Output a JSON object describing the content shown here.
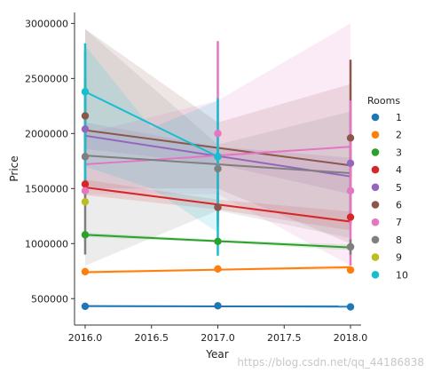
{
  "chart_data": {
    "type": "scatter",
    "subtype": "regression-point-plot",
    "xlabel": "Year",
    "ylabel": "Price",
    "xlim": [
      2015.92,
      2018.08
    ],
    "ylim": [
      260000,
      3100000
    ],
    "x_ticks": [
      {
        "value": 2016.0,
        "label": "2016.0"
      },
      {
        "value": 2016.5,
        "label": "2016.5"
      },
      {
        "value": 2017.0,
        "label": "2017.0"
      },
      {
        "value": 2017.5,
        "label": "2017.5"
      },
      {
        "value": 2018.0,
        "label": "2018.0"
      }
    ],
    "y_ticks": [
      {
        "value": 500000,
        "label": "500000"
      },
      {
        "value": 1000000,
        "label": "1000000"
      },
      {
        "value": 1500000,
        "label": "1500000"
      },
      {
        "value": 2000000,
        "label": "2000000"
      },
      {
        "value": 2500000,
        "label": "2500000"
      },
      {
        "value": 3000000,
        "label": "3000000"
      }
    ],
    "grid": false,
    "legend": {
      "title": "Rooms",
      "placement": "right"
    },
    "series": [
      {
        "name": "1",
        "color": "#1f77b4",
        "points": [
          {
            "x": 2016.0,
            "y": 430000
          },
          {
            "x": 2017.0,
            "y": 435000
          },
          {
            "x": 2018.0,
            "y": 425000
          }
        ],
        "ci_bars": [
          {
            "x": 2016.0,
            "low": 420000,
            "high": 440000
          },
          {
            "x": 2017.0,
            "low": 425000,
            "high": 445000
          },
          {
            "x": 2018.0,
            "low": 410000,
            "high": 440000
          }
        ],
        "fit": {
          "y_start": 432000,
          "y_end": 428000
        },
        "band": {
          "start": [
            420000,
            444000
          ],
          "mid": [
            426000,
            438000
          ],
          "end": [
            412000,
            444000
          ]
        }
      },
      {
        "name": "2",
        "color": "#ff7f0e",
        "points": [
          {
            "x": 2016.0,
            "y": 745000
          },
          {
            "x": 2017.0,
            "y": 770000
          },
          {
            "x": 2018.0,
            "y": 760000
          }
        ],
        "ci_bars": [
          {
            "x": 2016.0,
            "low": 730000,
            "high": 760000
          },
          {
            "x": 2017.0,
            "low": 755000,
            "high": 785000
          },
          {
            "x": 2018.0,
            "low": 740000,
            "high": 780000
          }
        ],
        "fit": {
          "y_start": 740000,
          "y_end": 785000
        },
        "band": {
          "start": [
            725000,
            755000
          ],
          "mid": [
            752000,
            772000
          ],
          "end": [
            765000,
            805000
          ]
        }
      },
      {
        "name": "3",
        "color": "#2ca02c",
        "points": [
          {
            "x": 2016.0,
            "y": 1080000
          },
          {
            "x": 2017.0,
            "y": 1020000
          },
          {
            "x": 2018.0,
            "y": 970000
          }
        ],
        "ci_bars": [
          {
            "x": 2016.0,
            "low": 1060000,
            "high": 1100000
          },
          {
            "x": 2017.0,
            "low": 1000000,
            "high": 1040000
          },
          {
            "x": 2018.0,
            "low": 950000,
            "high": 990000
          }
        ],
        "fit": {
          "y_start": 1080000,
          "y_end": 965000
        },
        "band": {
          "start": [
            1060000,
            1100000
          ],
          "mid": [
            1010000,
            1036000
          ],
          "end": [
            940000,
            990000
          ]
        }
      },
      {
        "name": "4",
        "color": "#d62728",
        "points": [
          {
            "x": 2016.0,
            "y": 1540000
          },
          {
            "x": 2017.0,
            "y": 1330000
          },
          {
            "x": 2018.0,
            "y": 1240000
          }
        ],
        "ci_bars": [
          {
            "x": 2016.0,
            "low": 1480000,
            "high": 1600000
          },
          {
            "x": 2017.0,
            "low": 1270000,
            "high": 1390000
          },
          {
            "x": 2018.0,
            "low": 1170000,
            "high": 1310000
          }
        ],
        "fit": {
          "y_start": 1510000,
          "y_end": 1200000
        },
        "band": {
          "start": [
            1440000,
            1580000
          ],
          "mid": [
            1310000,
            1400000
          ],
          "end": [
            1120000,
            1290000
          ]
        }
      },
      {
        "name": "5",
        "color": "#9467bd",
        "points": [
          {
            "x": 2016.0,
            "y": 2040000
          },
          {
            "x": 2017.0,
            "y": 1790000
          },
          {
            "x": 2018.0,
            "y": 1730000
          }
        ],
        "ci_bars": [
          {
            "x": 2016.0,
            "low": 1930000,
            "high": 2150000
          },
          {
            "x": 2017.0,
            "low": 1700000,
            "high": 1880000
          },
          {
            "x": 2018.0,
            "low": 1610000,
            "high": 1850000
          }
        ],
        "fit": {
          "y_start": 1980000,
          "y_end": 1610000
        },
        "band": {
          "start": [
            1860000,
            2100000
          ],
          "mid": [
            1720000,
            1880000
          ],
          "end": [
            1450000,
            1780000
          ]
        }
      },
      {
        "name": "6",
        "color": "#8c564b",
        "points": [
          {
            "x": 2016.0,
            "y": 2160000
          },
          {
            "x": 2017.0,
            "y": 1330000
          },
          {
            "x": 2018.0,
            "y": 1960000
          }
        ],
        "ci_bars": [
          {
            "x": 2016.0,
            "low": 1800000,
            "high": 2520000
          },
          {
            "x": 2017.0,
            "low": 1200000,
            "high": 1460000
          },
          {
            "x": 2018.0,
            "low": 1250000,
            "high": 2670000
          }
        ],
        "fit": {
          "y_start": 2030000,
          "y_end": 1710000
        },
        "band": {
          "start": [
            1500000,
            2950000
          ],
          "mid": [
            1500000,
            2100000
          ],
          "end": [
            1000000,
            2450000
          ]
        }
      },
      {
        "name": "7",
        "color": "#e377c2",
        "points": [
          {
            "x": 2016.0,
            "y": 1480000
          },
          {
            "x": 2017.0,
            "y": 2000000
          },
          {
            "x": 2018.0,
            "y": 1480000
          }
        ],
        "ci_bars": [
          {
            "x": 2016.0,
            "low": 1380000,
            "high": 1580000
          },
          {
            "x": 2017.0,
            "low": 1150000,
            "high": 2840000
          },
          {
            "x": 2018.0,
            "low": 800000,
            "high": 2300000
          }
        ],
        "fit": {
          "y_start": 1720000,
          "y_end": 1880000
        },
        "band": {
          "start": [
            1450000,
            2000000
          ],
          "mid": [
            1450000,
            2300000
          ],
          "end": [
            800000,
            3000000
          ]
        }
      },
      {
        "name": "8",
        "color": "#7f7f7f",
        "points": [
          {
            "x": 2016.0,
            "y": 1790000
          },
          {
            "x": 2017.0,
            "y": 1680000
          },
          {
            "x": 2018.0,
            "y": 970000
          }
        ],
        "ci_bars": [
          {
            "x": 2016.0,
            "low": 900000,
            "high": 2750000
          },
          {
            "x": 2017.0,
            "low": 1500000,
            "high": 1860000
          },
          {
            "x": 2018.0,
            "low": 900000,
            "high": 1040000
          }
        ],
        "fit": {
          "y_start": 1800000,
          "y_end": 1640000
        },
        "band": {
          "start": [
            800000,
            2950000
          ],
          "mid": [
            1300000,
            1900000
          ],
          "end": [
            1050000,
            2200000
          ]
        }
      },
      {
        "name": "9",
        "color": "#bcbd22",
        "points": [
          {
            "x": 2016.0,
            "y": 1380000
          }
        ],
        "ci_bars": [],
        "fit": null,
        "band": null
      },
      {
        "name": "10",
        "color": "#17becf",
        "points": [
          {
            "x": 2016.0,
            "y": 2380000
          },
          {
            "x": 2017.0,
            "y": 1790000
          }
        ],
        "ci_bars": [
          {
            "x": 2016.0,
            "low": 1500000,
            "high": 2820000
          },
          {
            "x": 2017.0,
            "low": 890000,
            "high": 2320000
          }
        ],
        "fit": {
          "y_start": 2380000,
          "y_end": 1790000,
          "x_end": 2017.0
        },
        "band": {
          "start": [
            1700000,
            2800000
          ],
          "mid": [
            1500000,
            2050000
          ],
          "end": [
            1100000,
            2300000
          ],
          "x_end": 2017.0
        }
      }
    ]
  },
  "watermark": "https://blog.csdn.net/qq_44186838"
}
